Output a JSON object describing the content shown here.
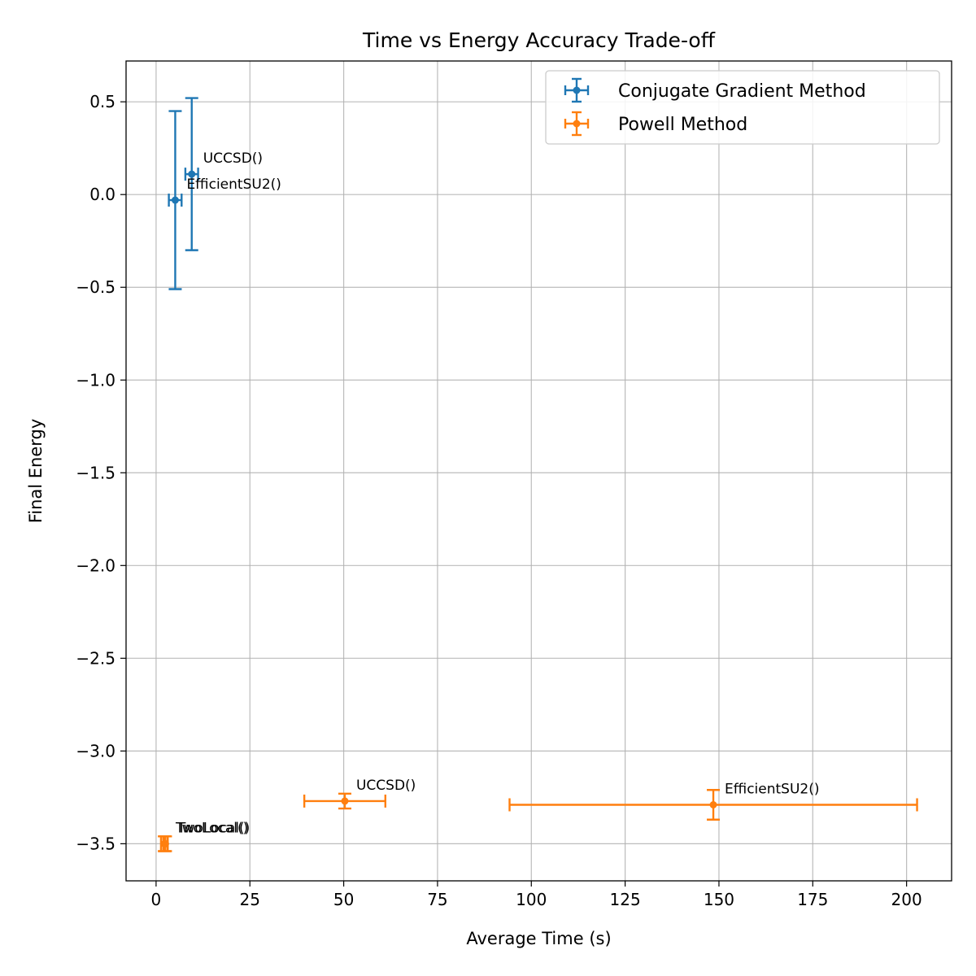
{
  "chart_data": {
    "type": "scatter",
    "title": "Time vs Energy Accuracy Trade-off",
    "xlabel": "Average Time (s)",
    "ylabel": "Final Energy",
    "xlim": [
      -8,
      212
    ],
    "ylim": [
      -3.7,
      0.72
    ],
    "x_ticks": [
      0,
      25,
      50,
      75,
      100,
      125,
      150,
      175,
      200
    ],
    "y_ticks": [
      0.5,
      0.0,
      -0.5,
      -1.0,
      -1.5,
      -2.0,
      -2.5,
      -3.0,
      -3.5
    ],
    "x_tick_labels": [
      "0",
      "25",
      "50",
      "75",
      "100",
      "125",
      "150",
      "175",
      "200"
    ],
    "y_tick_labels": [
      "0.5",
      "0.0",
      "−0.5",
      "−1.0",
      "−1.5",
      "−2.0",
      "−2.5",
      "−3.0",
      "−3.5"
    ],
    "grid": true,
    "legend_position": "top-right",
    "series": [
      {
        "name": "Conjugate Gradient Method",
        "color": "#1f77b4",
        "points": [
          {
            "label": "UCCSD()",
            "x": 9.5,
            "y": 0.11,
            "xerr": 1.7,
            "yerr": 0.41
          },
          {
            "label": "EfficientSU2()",
            "x": 5.1,
            "y": -0.03,
            "xerr": 1.7,
            "yerr": 0.48
          }
        ]
      },
      {
        "name": "Powell Method",
        "color": "#ff7f0e",
        "points": [
          {
            "label": "UCCSD()",
            "x": 50.3,
            "y": -3.27,
            "xerr": 10.8,
            "yerr": 0.04
          },
          {
            "label": "EfficientSU2()",
            "x": 148.5,
            "y": -3.29,
            "xerr": 54.3,
            "yerr": 0.08
          },
          {
            "label": "TwoLocal()",
            "x": 2.2,
            "y": -3.5,
            "xerr": 0.9,
            "yerr": 0.04
          },
          {
            "label": "TwoLocal()",
            "x": 2.5,
            "y": -3.5,
            "xerr": 0.6,
            "yerr": 0.04
          }
        ]
      }
    ]
  }
}
